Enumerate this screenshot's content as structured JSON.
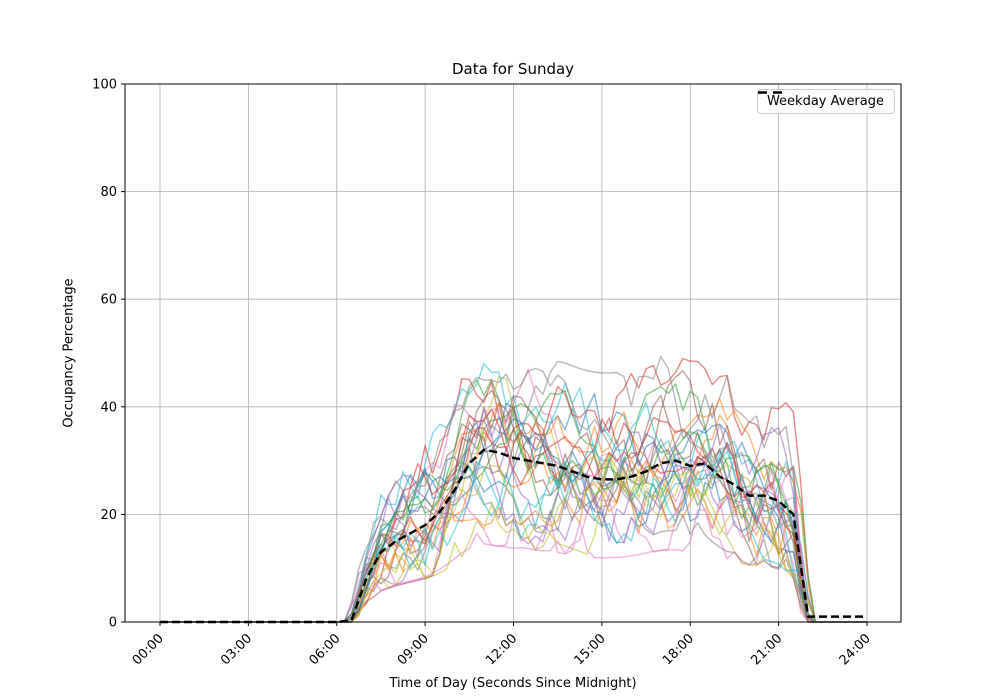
{
  "chart_data": {
    "type": "line",
    "title": "Data for Sunday",
    "xlabel": "Time of Day (Seconds Since Midnight)",
    "ylabel": "Occupancy Percentage",
    "ylim": [
      0,
      100
    ],
    "grid": true,
    "x_tick_hours": [
      0,
      3,
      6,
      9,
      12,
      15,
      18,
      21,
      24
    ],
    "x_tick_labels": [
      "00:00",
      "03:00",
      "06:00",
      "09:00",
      "12:00",
      "15:00",
      "18:00",
      "21:00",
      "24:00"
    ],
    "y_ticks": [
      0,
      20,
      40,
      60,
      80,
      100
    ],
    "legend": {
      "position": "upper right",
      "entries": [
        {
          "label": "Weekday Average",
          "color": "#000000",
          "style": "dashed"
        }
      ]
    },
    "style": {
      "background": "#ffffff",
      "grid_color": "#b0b0b0",
      "spine_color": "#000000",
      "text_color": "#000000"
    },
    "x_hours": [
      0,
      0.5,
      1,
      1.5,
      2,
      2.5,
      3,
      3.5,
      4,
      4.5,
      5,
      5.5,
      6,
      6.5,
      7,
      7.5,
      8,
      8.5,
      9,
      9.5,
      10,
      10.5,
      11,
      11.5,
      12,
      12.5,
      13,
      13.5,
      14,
      14.5,
      15,
      15.5,
      16,
      16.5,
      17,
      17.5,
      18,
      18.5,
      19,
      19.5,
      20,
      20.5,
      21,
      21.5,
      22,
      22.5,
      23,
      23.5,
      24
    ],
    "average_series": {
      "name": "Weekday Average",
      "color": "#000000",
      "dash": [
        8,
        4
      ],
      "line_width": 2.5,
      "values": [
        0,
        0,
        0,
        0,
        0,
        0,
        0,
        0,
        0,
        0,
        0,
        0,
        0,
        0.3,
        8,
        13,
        15,
        16.5,
        18,
        20.5,
        24.5,
        29.5,
        32,
        31.5,
        30.5,
        30,
        29.5,
        29,
        28,
        27,
        26.5,
        26.5,
        27,
        28,
        29.5,
        30,
        29,
        29.5,
        27,
        25.5,
        23.5,
        23.5,
        22.5,
        20,
        1,
        1,
        1,
        1,
        1
      ],
      "values_max_observed": 32,
      "tail_value_after_22": 1
    },
    "ensemble": {
      "description": "Individual Sunday occupancy traces at 15-minute resolution, zero before ~06:45 and after 22:00, midday spread roughly 13-53 percent around the mean",
      "count": 30,
      "alpha": 0.55,
      "line_width": 1.4,
      "spread": 13,
      "bias_range": 4.5,
      "step_hours": 0.25,
      "seed": 11,
      "max_observed": 53,
      "min_midday_observed": 13,
      "colors": [
        "#1f77b4",
        "#ff7f0e",
        "#2ca02c",
        "#d62728",
        "#9467bd",
        "#8c564b",
        "#e377c2",
        "#7f7f7f",
        "#bcbd22",
        "#17becf"
      ],
      "base_values": [
        0,
        0,
        0,
        0,
        0,
        0,
        0,
        0,
        0,
        0,
        0,
        0,
        0,
        0,
        8,
        13,
        15,
        16.5,
        18,
        20.5,
        24.5,
        29.5,
        32,
        31.5,
        30.5,
        30,
        29.5,
        29,
        28,
        27,
        26.5,
        26.5,
        27,
        28,
        29.5,
        30,
        29,
        29.5,
        27,
        25.5,
        23.5,
        23.5,
        22.5,
        19,
        0,
        0,
        0,
        0,
        0
      ]
    }
  }
}
